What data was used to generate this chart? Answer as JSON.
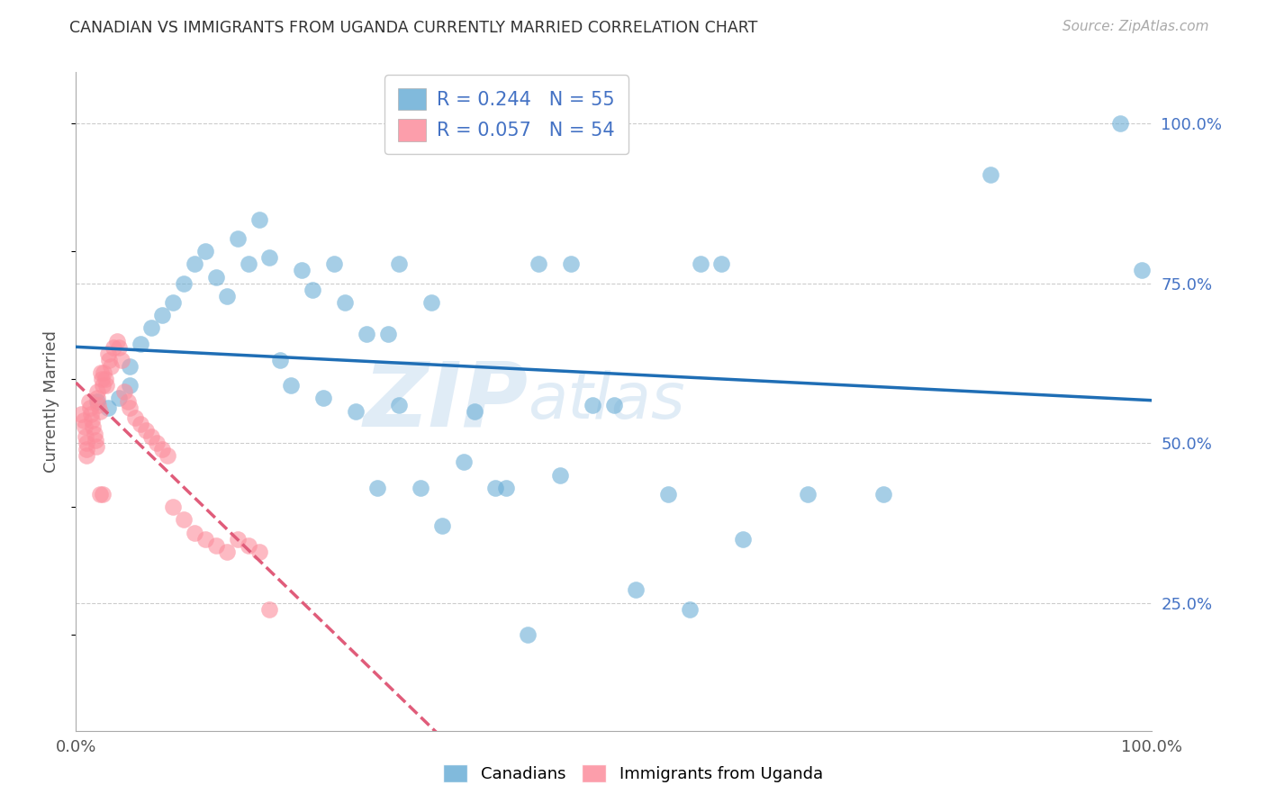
{
  "title": "CANADIAN VS IMMIGRANTS FROM UGANDA CURRENTLY MARRIED CORRELATION CHART",
  "source": "Source: ZipAtlas.com",
  "ylabel": "Currently Married",
  "ytick_labels": [
    "25.0%",
    "50.0%",
    "75.0%",
    "100.0%"
  ],
  "ytick_values": [
    0.25,
    0.5,
    0.75,
    1.0
  ],
  "legend_line1": "R = 0.244   N = 55",
  "legend_line2": "R = 0.057   N = 54",
  "canadian_color": "#6baed6",
  "uganda_color": "#fc8d9c",
  "canadian_line_color": "#1f6eb5",
  "uganda_line_color": "#e05c7a",
  "watermark_zip": "ZIP",
  "watermark_atlas": "atlas",
  "canadians_x": [
    0.02,
    0.03,
    0.04,
    0.05,
    0.05,
    0.06,
    0.07,
    0.08,
    0.09,
    0.1,
    0.11,
    0.12,
    0.13,
    0.14,
    0.15,
    0.16,
    0.17,
    0.18,
    0.19,
    0.2,
    0.21,
    0.22,
    0.23,
    0.24,
    0.25,
    0.26,
    0.27,
    0.28,
    0.29,
    0.3,
    0.32,
    0.34,
    0.37,
    0.39,
    0.42,
    0.45,
    0.48,
    0.52,
    0.57,
    0.6,
    0.3,
    0.33,
    0.36,
    0.4,
    0.43,
    0.46,
    0.5,
    0.55,
    0.58,
    0.62,
    0.68,
    0.75,
    0.85,
    0.97,
    0.99
  ],
  "canadians_y": [
    0.565,
    0.555,
    0.57,
    0.62,
    0.59,
    0.655,
    0.68,
    0.7,
    0.72,
    0.75,
    0.78,
    0.8,
    0.76,
    0.73,
    0.82,
    0.78,
    0.85,
    0.79,
    0.63,
    0.59,
    0.77,
    0.74,
    0.57,
    0.78,
    0.72,
    0.55,
    0.67,
    0.43,
    0.67,
    0.56,
    0.43,
    0.37,
    0.55,
    0.43,
    0.2,
    0.45,
    0.56,
    0.27,
    0.24,
    0.78,
    0.78,
    0.72,
    0.47,
    0.43,
    0.78,
    0.78,
    0.56,
    0.42,
    0.78,
    0.35,
    0.42,
    0.42,
    0.92,
    1.0,
    0.77
  ],
  "uganda_x": [
    0.005,
    0.007,
    0.008,
    0.009,
    0.01,
    0.01,
    0.01,
    0.012,
    0.013,
    0.014,
    0.015,
    0.016,
    0.017,
    0.018,
    0.019,
    0.02,
    0.02,
    0.021,
    0.022,
    0.022,
    0.023,
    0.024,
    0.025,
    0.025,
    0.026,
    0.027,
    0.028,
    0.03,
    0.031,
    0.032,
    0.035,
    0.038,
    0.04,
    0.042,
    0.045,
    0.048,
    0.05,
    0.055,
    0.06,
    0.065,
    0.07,
    0.075,
    0.08,
    0.085,
    0.09,
    0.1,
    0.11,
    0.12,
    0.13,
    0.14,
    0.15,
    0.16,
    0.17,
    0.18
  ],
  "uganda_y": [
    0.545,
    0.535,
    0.525,
    0.51,
    0.5,
    0.49,
    0.48,
    0.565,
    0.555,
    0.545,
    0.535,
    0.525,
    0.515,
    0.505,
    0.495,
    0.58,
    0.57,
    0.56,
    0.55,
    0.42,
    0.61,
    0.6,
    0.59,
    0.42,
    0.61,
    0.6,
    0.59,
    0.64,
    0.63,
    0.62,
    0.65,
    0.66,
    0.65,
    0.63,
    0.58,
    0.565,
    0.555,
    0.54,
    0.53,
    0.52,
    0.51,
    0.5,
    0.49,
    0.48,
    0.4,
    0.38,
    0.36,
    0.35,
    0.34,
    0.33,
    0.35,
    0.34,
    0.33,
    0.24
  ]
}
